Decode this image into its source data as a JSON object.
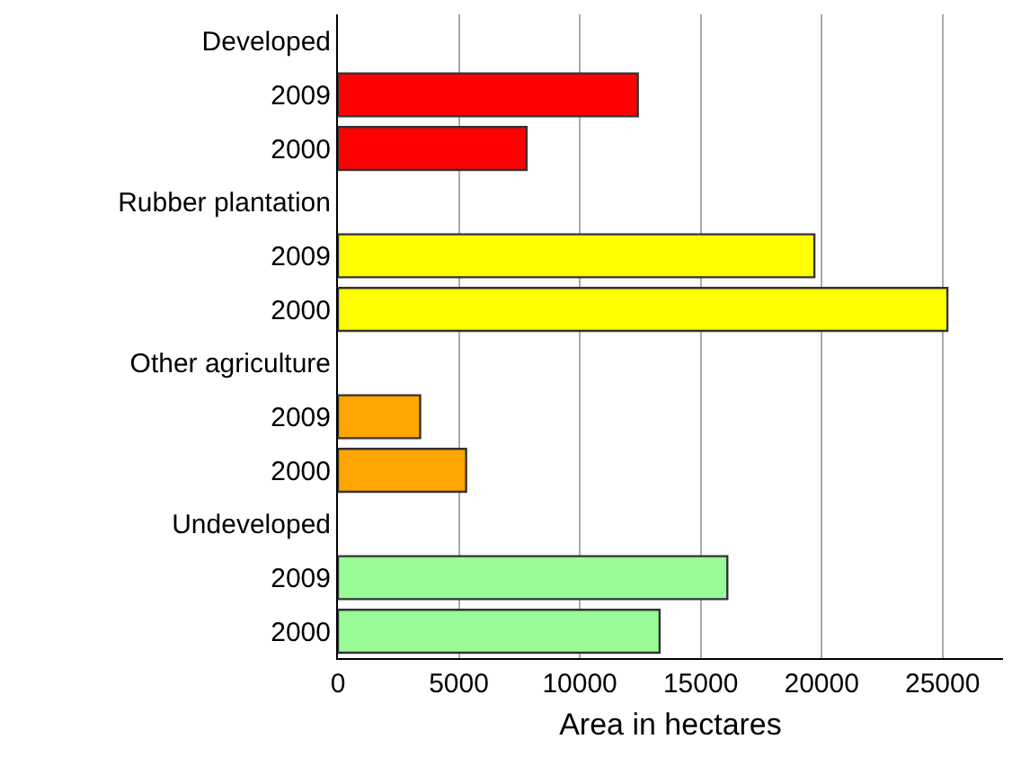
{
  "chart_data": {
    "type": "bar",
    "orientation": "horizontal",
    "xlabel": "Area in hectares",
    "categories": [
      "Developed",
      "2009",
      "2000",
      "Rubber plantation",
      "2009",
      "2000",
      "Other agriculture",
      "2009",
      "2000",
      "Undeveloped",
      "2009",
      "2000"
    ],
    "values": [
      null,
      12400,
      7800,
      null,
      19700,
      25200,
      null,
      3400,
      5300,
      null,
      16100,
      13300
    ],
    "colors": [
      null,
      "#ff0000",
      "#ff0000",
      null,
      "#ffff00",
      "#ffff00",
      null,
      "#ffa500",
      "#ffa500",
      null,
      "#98fb98",
      "#98fb98"
    ],
    "xlim": [
      0,
      27500
    ],
    "xticks": [
      0,
      5000,
      10000,
      15000,
      20000,
      25000
    ],
    "grid": "x"
  }
}
